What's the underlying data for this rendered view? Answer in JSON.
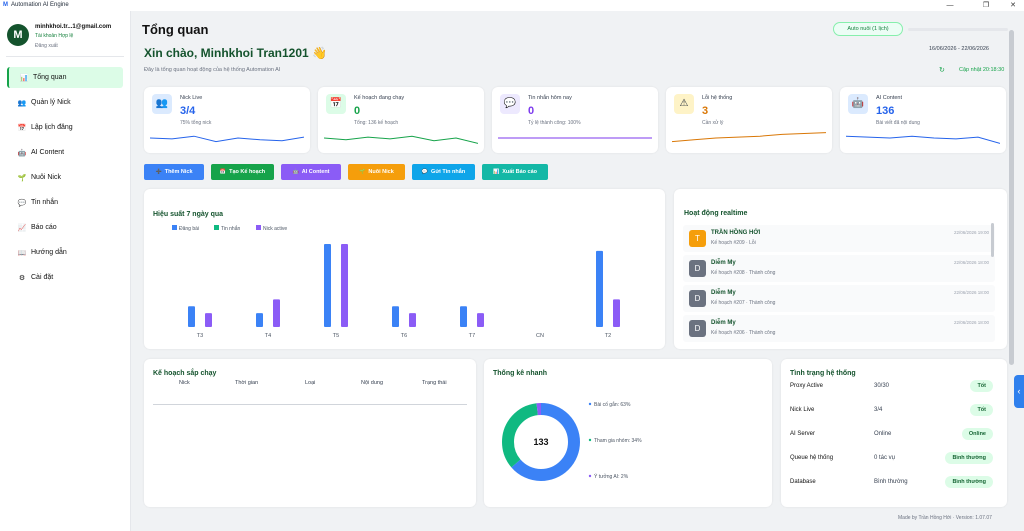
{
  "window": {
    "title": "Automation AI Engine",
    "controls": [
      "—",
      "❐",
      "✕"
    ]
  },
  "user": {
    "initial": "M",
    "email": "minhkhoi.tr...1@gmail.com",
    "role": "Tài khoản Hợp lệ",
    "logout": "Đăng xuất"
  },
  "nav": [
    {
      "label": "Tổng quan",
      "icon": "📊"
    },
    {
      "label": "Quản lý Nick",
      "icon": "👥"
    },
    {
      "label": "Lập lịch đăng",
      "icon": "📅"
    },
    {
      "label": "AI Content",
      "icon": "🤖"
    },
    {
      "label": "Nuôi Nick",
      "icon": "🌱"
    },
    {
      "label": "Tin nhắn",
      "icon": "💬"
    },
    {
      "label": "Báo cáo",
      "icon": "📈"
    },
    {
      "label": "Hướng dẫn",
      "icon": "📖"
    },
    {
      "label": "Cài đặt",
      "icon": "⚙"
    }
  ],
  "header": {
    "title": "Tổng quan",
    "auto_button": "Auto nuôi (1 lịch)",
    "greeting": "Xin chào, Minhkhoi Tran1201 👋",
    "subtitle": "Đây là tổng quan hoạt động của hệ thống Automation AI",
    "date_range": "16/06/2026 - 22/06/2026",
    "updated": "Cập nhật 20:18:30"
  },
  "stats": [
    {
      "label": "Nick Live",
      "value": "3/4",
      "sub": "75% tổng nick",
      "icon": "👥",
      "color": "#2563eb",
      "bg": "#dbeafe",
      "spark": [
        0.5,
        0.45,
        0.6,
        0.3,
        0.5,
        0.4,
        0.35,
        0.55
      ]
    },
    {
      "label": "Kế hoạch đang chạy",
      "value": "0",
      "sub": "Tổng: 136 kế hoạch",
      "icon": "📅",
      "color": "#16a34a",
      "bg": "#dcfce7",
      "spark": [
        0.5,
        0.4,
        0.55,
        0.45,
        0.6,
        0.35,
        0.5,
        0.2
      ]
    },
    {
      "label": "Tin nhắn hôm nay",
      "value": "0",
      "sub": "Tỷ lệ thành công: 100%",
      "icon": "💬",
      "color": "#7c3aed",
      "bg": "#ede9fe",
      "spark": [
        0.5,
        0.5,
        0.5,
        0.5,
        0.5,
        0.5,
        0.5,
        0.5
      ]
    },
    {
      "label": "Lỗi hệ thống",
      "value": "3",
      "sub": "Cần xử lý",
      "icon": "⚠",
      "color": "#d97706",
      "bg": "#fef3c7",
      "spark": [
        0.3,
        0.4,
        0.5,
        0.55,
        0.6,
        0.7,
        0.75,
        0.8
      ]
    },
    {
      "label": "AI Content",
      "value": "136",
      "sub": "Bài viết đã nội dung",
      "icon": "🤖",
      "color": "#2563eb",
      "bg": "#dbeafe",
      "spark": [
        0.6,
        0.55,
        0.5,
        0.6,
        0.5,
        0.45,
        0.55,
        0.2
      ]
    }
  ],
  "quick_actions": [
    {
      "label": "Thêm Nick",
      "icon": "➕",
      "color": "#3b82f6"
    },
    {
      "label": "Tạo Kế hoạch",
      "icon": "📅",
      "color": "#16a34a"
    },
    {
      "label": "AI Content",
      "icon": "🤖",
      "color": "#8b5cf6"
    },
    {
      "label": "Nuôi Nick",
      "icon": "🌱",
      "color": "#f59e0b"
    },
    {
      "label": "Gửi Tin nhắn",
      "icon": "💬",
      "color": "#0ea5e9"
    },
    {
      "label": "Xuất Báo cáo",
      "icon": "📊",
      "color": "#14b8a6"
    }
  ],
  "chart_data": {
    "type": "bar",
    "title": "Hiệu suất 7 ngày qua",
    "categories": [
      "T3",
      "T4",
      "T5",
      "T6",
      "T7",
      "CN",
      "T2"
    ],
    "series": [
      {
        "name": "Đăng bài",
        "color": "#3b82f6",
        "values": [
          3,
          2,
          12,
          3,
          3,
          0,
          11
        ]
      },
      {
        "name": "Tin nhắn",
        "color": "#10b981",
        "values": [
          0,
          0,
          0,
          0,
          0,
          0,
          0
        ]
      },
      {
        "name": "Nick active",
        "color": "#8b5cf6",
        "values": [
          2,
          4,
          12,
          2,
          2,
          0,
          4
        ]
      }
    ],
    "ylim": [
      0,
      12
    ],
    "legend": "top-left",
    "grid": false
  },
  "activity": {
    "title": "Hoạt động realtime",
    "items": [
      {
        "name": "TRẦN HỒNG HỚI",
        "desc": "Kế hoạch #209 · Lỗi",
        "time": "22/06/2026 19:00",
        "avatar": "T",
        "avatar_color": "#f59e0b"
      },
      {
        "name": "Diễm My",
        "desc": "Kế hoạch #208 · Thành công",
        "time": "22/06/2026 18:00",
        "avatar": "D",
        "avatar_color": "#6b7280"
      },
      {
        "name": "Diễm My",
        "desc": "Kế hoạch #207 · Thành công",
        "time": "22/06/2026 18:00",
        "avatar": "D",
        "avatar_color": "#6b7280"
      },
      {
        "name": "Diễm My",
        "desc": "Kế hoạch #206 · Thành công",
        "time": "22/06/2026 18:00",
        "avatar": "D",
        "avatar_color": "#6b7280"
      }
    ]
  },
  "upcoming": {
    "title": "Kế hoạch sắp chạy",
    "columns": [
      "Nick",
      "Thời gian",
      "Loại",
      "Nội dung",
      "Trạng thái"
    ]
  },
  "quick_stats": {
    "title": "Thống kê nhanh",
    "total": "133",
    "slices": [
      {
        "label": "Bài cố gắn: 63%",
        "value": 63,
        "color": "#3b82f6"
      },
      {
        "label": "Tham gia nhóm: 34%",
        "value": 34,
        "color": "#10b981"
      },
      {
        "label": "Ý tưởng AI: 2%",
        "value": 2,
        "color": "#8b5cf6"
      }
    ]
  },
  "system": {
    "title": "Tình trạng hệ thống",
    "rows": [
      {
        "name": "Proxy Active",
        "value": "30/30",
        "status": "Tốt"
      },
      {
        "name": "Nick Live",
        "value": "3/4",
        "status": "Tốt"
      },
      {
        "name": "AI Server",
        "value": "Online",
        "status": "Online"
      },
      {
        "name": "Queue hệ thống",
        "value": "0 tác vụ",
        "status": "Bình thường"
      },
      {
        "name": "Database",
        "value": "Bình thường",
        "status": "Bình thường"
      }
    ]
  },
  "footer": "Made by Trần Hồng Hới · Version: 1.07.07"
}
